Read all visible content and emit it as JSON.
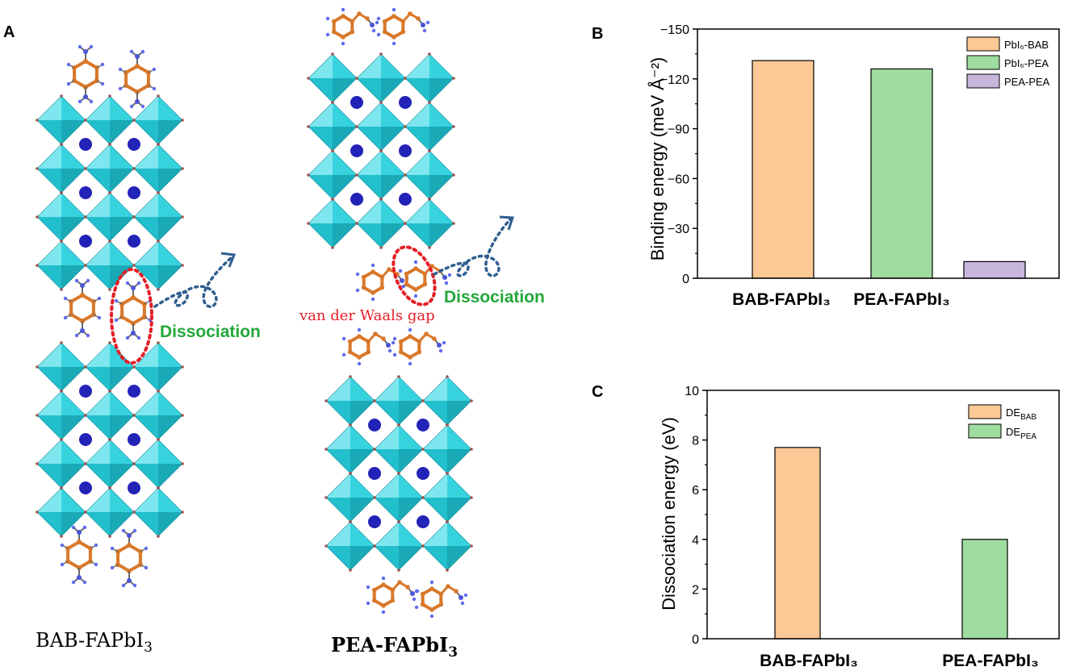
{
  "panel_letters": [
    "A",
    "B",
    "C"
  ],
  "structure_labels": {
    "bab": {
      "base": "BAB-FAPbI",
      "sub": "3"
    },
    "pea": {
      "base": "PEA-FAPbI",
      "sub": "3"
    }
  },
  "annotations": {
    "dissociation": "Dissociation",
    "vdw_gap": "van der Waals gap"
  },
  "colors": {
    "octahedron": "#36d3df",
    "octahedron_dark": "#1aa9b6",
    "cation": "#2323b8",
    "ring": "#d9782a",
    "amine": "#4a55d6",
    "highlight": "#e41e26",
    "arrow": "#2f5f8f",
    "label_green": "#22a83a"
  },
  "chart_data": [
    {
      "type": "bar",
      "panel": "B",
      "categories": [
        "BAB-FAPbI₃",
        "PEA-FAPbI₃"
      ],
      "series": [
        {
          "name": "PbI₆-BAB",
          "values": [
            -131,
            null
          ],
          "color": "#fcc895"
        },
        {
          "name": "PbI₆-PEA",
          "values": [
            null,
            -126
          ],
          "color": "#9fdc9f"
        },
        {
          "name": "PEA-PEA",
          "values": [
            null,
            -10
          ],
          "color": "#c9b6dd"
        }
      ],
      "ylabel": "Binding energy (meV Å⁻²)",
      "ylim": [
        0,
        -150
      ],
      "yticks": [
        0,
        -30,
        -60,
        -90,
        -120,
        -150
      ],
      "ytick_labels": [
        "0",
        "−30",
        "−60",
        "−90",
        "−120",
        "−150"
      ],
      "legend": "top-right",
      "grid": false
    },
    {
      "type": "bar",
      "panel": "C",
      "categories": [
        "BAB-FAPbI₃",
        "PEA-FAPbI₃"
      ],
      "series": [
        {
          "name": "DE",
          "name_sub": "BAB",
          "values": [
            7.7,
            null
          ],
          "color": "#fcc895"
        },
        {
          "name": "DE",
          "name_sub": "PEA",
          "values": [
            null,
            4.0
          ],
          "color": "#9fdc9f"
        }
      ],
      "ylabel": "Dissociation energy (eV)",
      "ylim": [
        0,
        10
      ],
      "yticks": [
        0,
        2,
        4,
        6,
        8,
        10
      ],
      "ytick_labels": [
        "0",
        "2",
        "4",
        "6",
        "8",
        "10"
      ],
      "legend": "top-right",
      "grid": false
    }
  ]
}
